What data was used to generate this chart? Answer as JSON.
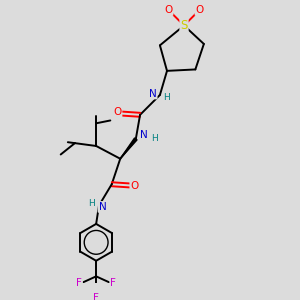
{
  "bg_color": "#dcdcdc",
  "atom_colors": {
    "O": "#ff0000",
    "N": "#0000cd",
    "S": "#cccc00",
    "F": "#cc00cc",
    "H": "#008080",
    "C": "#000000"
  },
  "bond_lw": 1.4,
  "fs": 7.0
}
